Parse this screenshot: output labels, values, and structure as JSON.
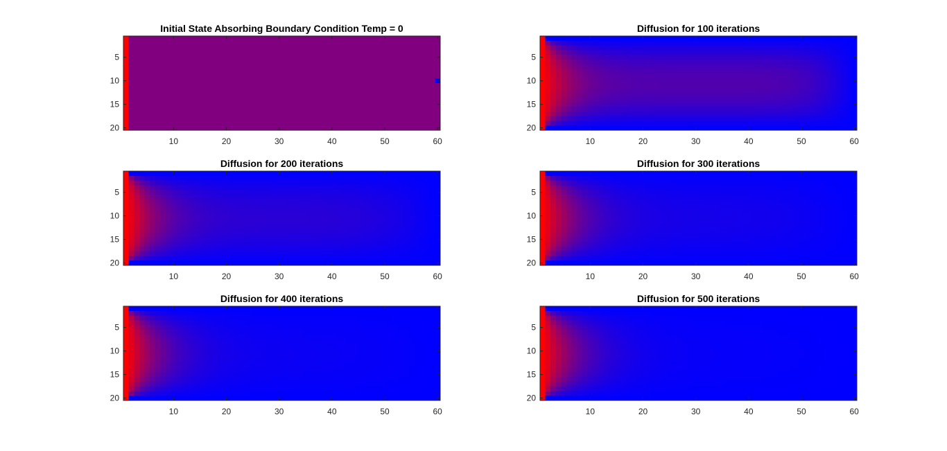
{
  "figure": {
    "background": "#ffffff",
    "colors": {
      "hot": "#ff0000",
      "cold": "#0000ff",
      "mid": "#800080",
      "axis": "#262626"
    }
  },
  "chart_data": [
    {
      "type": "heatmap",
      "title": "Initial State   Absorbing Boundary Condition Temp = 0",
      "rows": 20,
      "cols": 60,
      "xlim": [
        0.5,
        60.5
      ],
      "ylim": [
        0.5,
        20.5
      ],
      "xticks": [
        10,
        20,
        30,
        40,
        50,
        60
      ],
      "yticks": [
        5,
        10,
        15,
        20
      ],
      "iterations": 0,
      "initial_field": {
        "hot_column": 1,
        "hot_value": 1,
        "interior_value": 0.5,
        "cold_cell": [
          10,
          60
        ],
        "cold_value": 0
      },
      "colormap": [
        "#0000ff",
        "#ff0000"
      ]
    },
    {
      "type": "heatmap",
      "title": "Diffusion for 100 iterations",
      "rows": 20,
      "cols": 60,
      "xlim": [
        0.5,
        60.5
      ],
      "ylim": [
        0.5,
        20.5
      ],
      "xticks": [
        10,
        20,
        30,
        40,
        50,
        60
      ],
      "yticks": [
        5,
        10,
        15,
        20
      ],
      "iterations": 100,
      "colormap": [
        "#0000ff",
        "#ff0000"
      ]
    },
    {
      "type": "heatmap",
      "title": "Diffusion for 200 iterations",
      "rows": 20,
      "cols": 60,
      "xlim": [
        0.5,
        60.5
      ],
      "ylim": [
        0.5,
        20.5
      ],
      "xticks": [
        10,
        20,
        30,
        40,
        50,
        60
      ],
      "yticks": [
        5,
        10,
        15,
        20
      ],
      "iterations": 200,
      "colormap": [
        "#0000ff",
        "#ff0000"
      ]
    },
    {
      "type": "heatmap",
      "title": "Diffusion for 300 iterations",
      "rows": 20,
      "cols": 60,
      "xlim": [
        0.5,
        60.5
      ],
      "ylim": [
        0.5,
        20.5
      ],
      "xticks": [
        10,
        20,
        30,
        40,
        50,
        60
      ],
      "yticks": [
        5,
        10,
        15,
        20
      ],
      "iterations": 300,
      "colormap": [
        "#0000ff",
        "#ff0000"
      ]
    },
    {
      "type": "heatmap",
      "title": "Diffusion for 400 iterations",
      "rows": 20,
      "cols": 60,
      "xlim": [
        0.5,
        60.5
      ],
      "ylim": [
        0.5,
        20.5
      ],
      "xticks": [
        10,
        20,
        30,
        40,
        50,
        60
      ],
      "yticks": [
        5,
        10,
        15,
        20
      ],
      "iterations": 400,
      "colormap": [
        "#0000ff",
        "#ff0000"
      ]
    },
    {
      "type": "heatmap",
      "title": "Diffusion for 500 iterations",
      "rows": 20,
      "cols": 60,
      "xlim": [
        0.5,
        60.5
      ],
      "ylim": [
        0.5,
        20.5
      ],
      "xticks": [
        10,
        20,
        30,
        40,
        50,
        60
      ],
      "yticks": [
        5,
        10,
        15,
        20
      ],
      "iterations": 500,
      "colormap": [
        "#0000ff",
        "#ff0000"
      ]
    }
  ]
}
